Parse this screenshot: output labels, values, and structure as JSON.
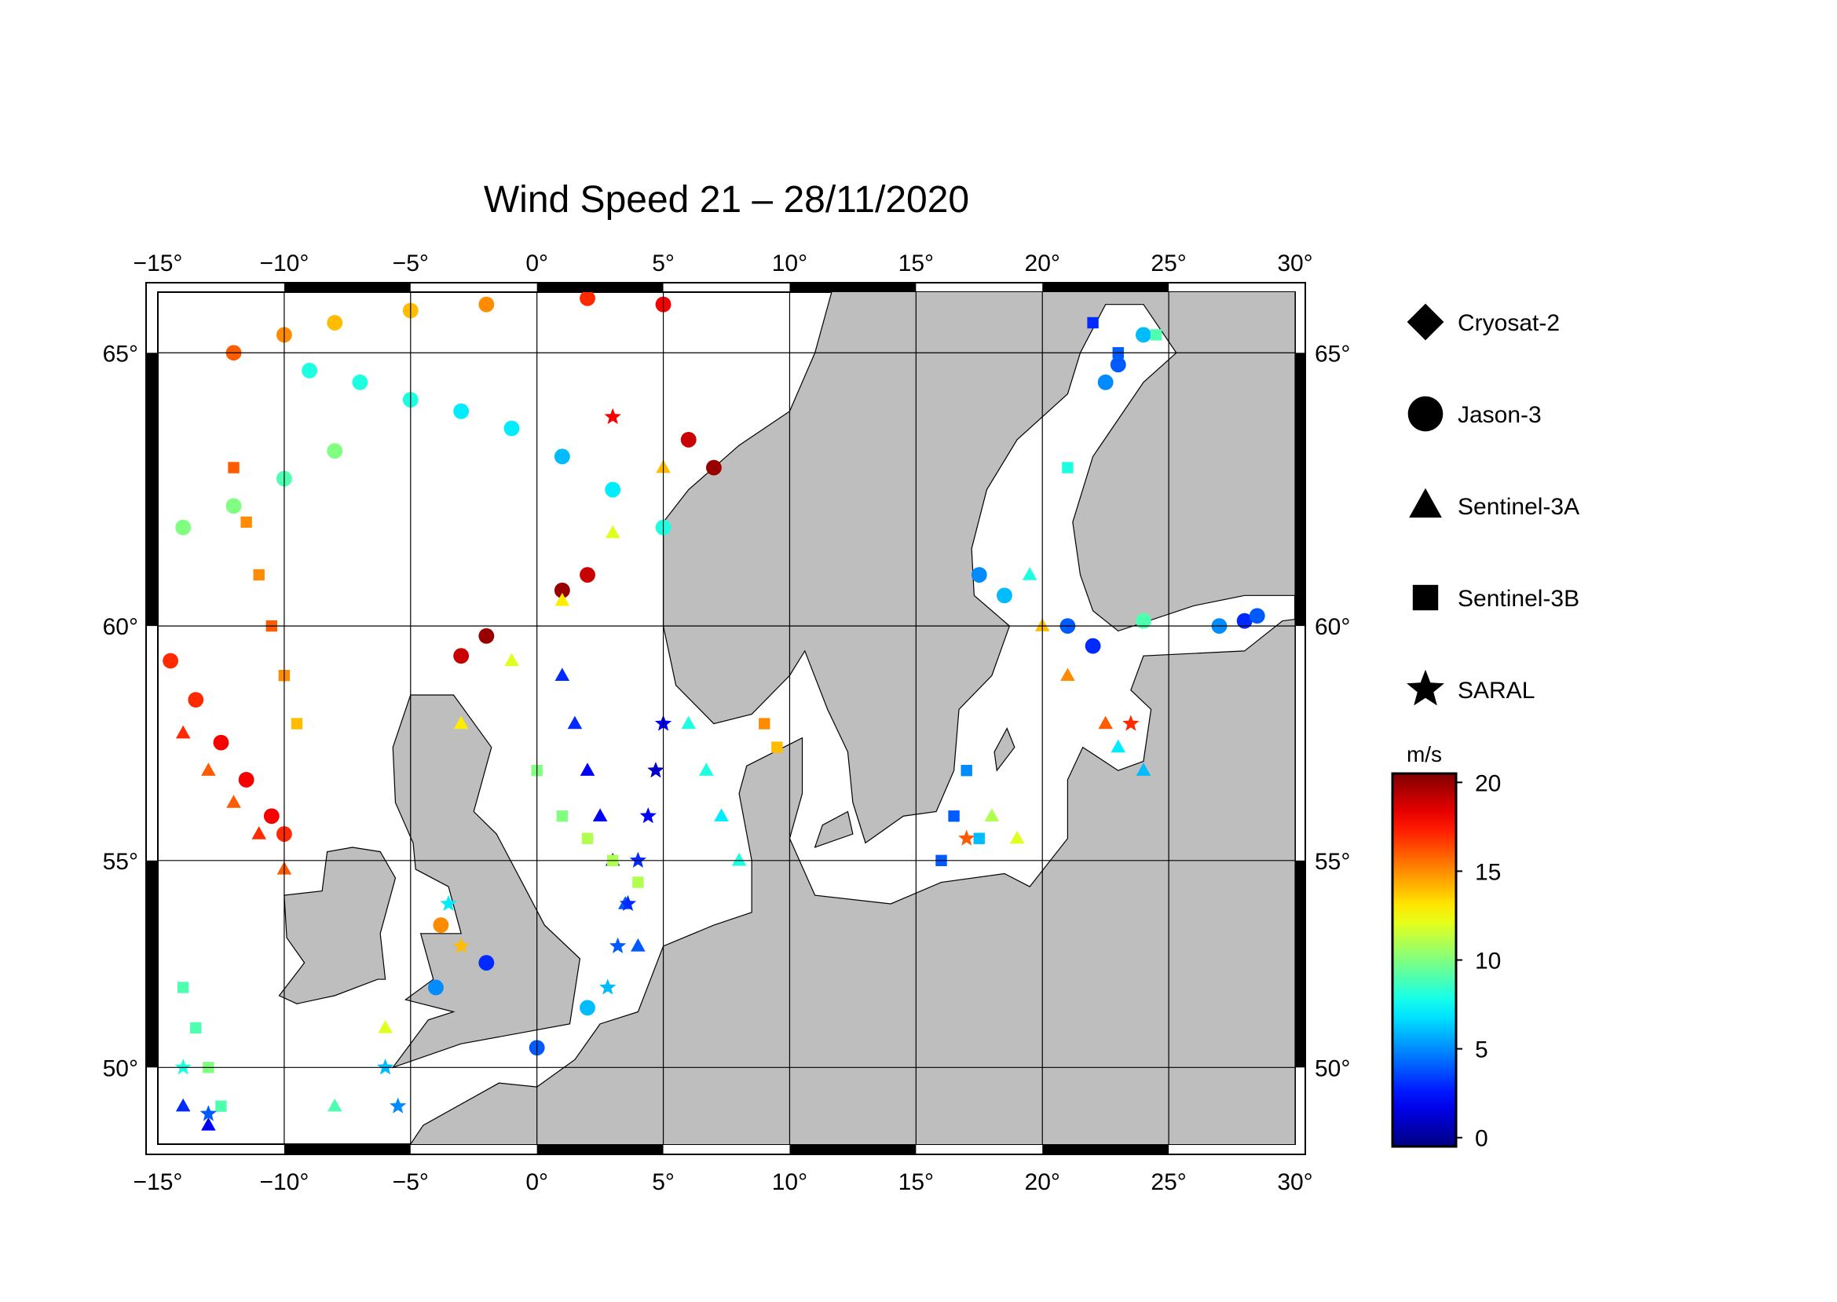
{
  "chart_data": {
    "type": "scatter",
    "projection": "mercator",
    "title": "Wind Speed 21 – 28/11/2020",
    "xlim": [
      -15,
      30
    ],
    "ylim": [
      48,
      66
    ],
    "xticks": [
      {
        "value": -15,
        "label": "−15°"
      },
      {
        "value": -10,
        "label": "−10°"
      },
      {
        "value": -5,
        "label": "−5°"
      },
      {
        "value": 0,
        "label": "0°"
      },
      {
        "value": 5,
        "label": "5°"
      },
      {
        "value": 10,
        "label": "10°"
      },
      {
        "value": 15,
        "label": "15°"
      },
      {
        "value": 20,
        "label": "20°"
      },
      {
        "value": 25,
        "label": "25°"
      },
      {
        "value": 30,
        "label": "30°"
      }
    ],
    "yticks": [
      {
        "value": 50,
        "label": "50°"
      },
      {
        "value": 55,
        "label": "55°"
      },
      {
        "value": 60,
        "label": "60°"
      },
      {
        "value": 65,
        "label": "65°"
      }
    ],
    "grid": true,
    "colorbar": {
      "label": "m/s",
      "colormap": "jet",
      "clim": [
        -0.5,
        20.5
      ],
      "ticks": [
        0,
        5,
        10,
        15,
        20
      ]
    },
    "series": [
      {
        "name": "Cryosat-2",
        "marker": "diamond",
        "x": [],
        "y": [],
        "values": []
      },
      {
        "name": "Jason-3",
        "marker": "circle",
        "x": [
          -14.5,
          -13.5,
          -12.5,
          -11.5,
          -10.5,
          -10,
          -9,
          -7,
          -5,
          -3,
          -1,
          1,
          3,
          5,
          -14,
          -12,
          -10,
          -8,
          -12,
          -10,
          -8,
          -5,
          -2,
          2,
          5,
          6,
          7,
          2,
          1,
          -2,
          -3,
          21,
          22,
          24,
          27,
          28,
          28.5,
          17.5,
          18.5,
          22.5,
          23,
          24,
          -4,
          -3.8,
          -2,
          0,
          2
        ],
        "y": [
          59.3,
          58.5,
          57.6,
          56.8,
          56,
          55.6,
          64.7,
          64.5,
          64.2,
          64,
          63.7,
          63.2,
          62.6,
          61.9,
          61.9,
          62.3,
          62.8,
          63.3,
          65,
          65.3,
          65.5,
          65.7,
          65.8,
          65.9,
          65.8,
          63.5,
          63,
          61,
          60.7,
          59.8,
          59.4,
          60,
          59.6,
          60.1,
          60,
          60.1,
          60.2,
          61,
          60.6,
          64.5,
          64.8,
          65.3,
          52,
          53.5,
          52.6,
          50.5,
          51.5
        ],
        "values": [
          17,
          17,
          18,
          18,
          18,
          17,
          8,
          8,
          8,
          7,
          7,
          6,
          7,
          8,
          10,
          10,
          9,
          10,
          16,
          15,
          14,
          14,
          15,
          17,
          18,
          19,
          20,
          19,
          20,
          20,
          19,
          4,
          3,
          9,
          5,
          3,
          4,
          5,
          6,
          5,
          4,
          6,
          5,
          15,
          3,
          4,
          6
        ]
      },
      {
        "name": "Sentinel-3A",
        "marker": "triangle",
        "x": [
          -14,
          -13,
          -12,
          -11,
          -10,
          1,
          1.5,
          2,
          2.5,
          3,
          3.5,
          4,
          -3,
          -1,
          1,
          3,
          5,
          6,
          6.7,
          7.3,
          8,
          19.5,
          20,
          21,
          22.5,
          23,
          24,
          18,
          19,
          -13,
          -14,
          -8,
          -6
        ],
        "y": [
          57.8,
          57,
          56.3,
          55.6,
          54.8,
          59,
          58,
          57,
          56,
          55,
          54,
          53,
          58,
          59.3,
          60.5,
          61.8,
          63,
          58,
          57,
          56,
          55,
          61,
          60,
          59,
          58,
          57.5,
          57,
          56,
          55.5,
          48.5,
          49,
          49,
          51
        ],
        "values": [
          17,
          16,
          16,
          17,
          16,
          3,
          3,
          2,
          2,
          3,
          4,
          4,
          13,
          12,
          13,
          12,
          14,
          8,
          8,
          7,
          8,
          8,
          14,
          15,
          16,
          7,
          6,
          11,
          12,
          2,
          3,
          9,
          12
        ]
      },
      {
        "name": "Sentinel-3B",
        "marker": "square",
        "x": [
          -12,
          -11.5,
          -11,
          -10.5,
          -10,
          -9.5,
          -14,
          -13.5,
          -13,
          -12.5,
          0,
          1,
          2,
          3,
          4,
          9,
          9.5,
          22,
          23,
          24.5,
          21,
          16,
          16.5,
          17,
          17.5
        ],
        "y": [
          63,
          62,
          61,
          60,
          59,
          58,
          52,
          51,
          50,
          49,
          57,
          56,
          55.5,
          55,
          54.5,
          58,
          57.5,
          65.5,
          65,
          65.3,
          63,
          55,
          56,
          57,
          55.5
        ],
        "values": [
          16,
          15,
          15,
          16,
          15,
          14,
          9,
          9,
          10,
          9,
          10,
          10,
          11,
          11,
          11,
          15,
          14,
          3,
          4,
          9,
          8,
          4,
          4,
          5,
          6
        ]
      },
      {
        "name": "SARAL",
        "marker": "star",
        "x": [
          5,
          4.7,
          4.4,
          4,
          3.6,
          3.2,
          2.8,
          3,
          -14,
          -13,
          -6,
          -5.5,
          -3,
          -3.5,
          23.5,
          17
        ],
        "y": [
          58,
          57,
          56,
          55,
          54,
          53,
          52,
          63.9,
          50,
          48.8,
          50,
          49,
          53,
          54,
          58,
          55.5
        ],
        "values": [
          2,
          1,
          2,
          3,
          3,
          4,
          6,
          18,
          8,
          4,
          6,
          5,
          14,
          7,
          17,
          16
        ]
      }
    ]
  }
}
